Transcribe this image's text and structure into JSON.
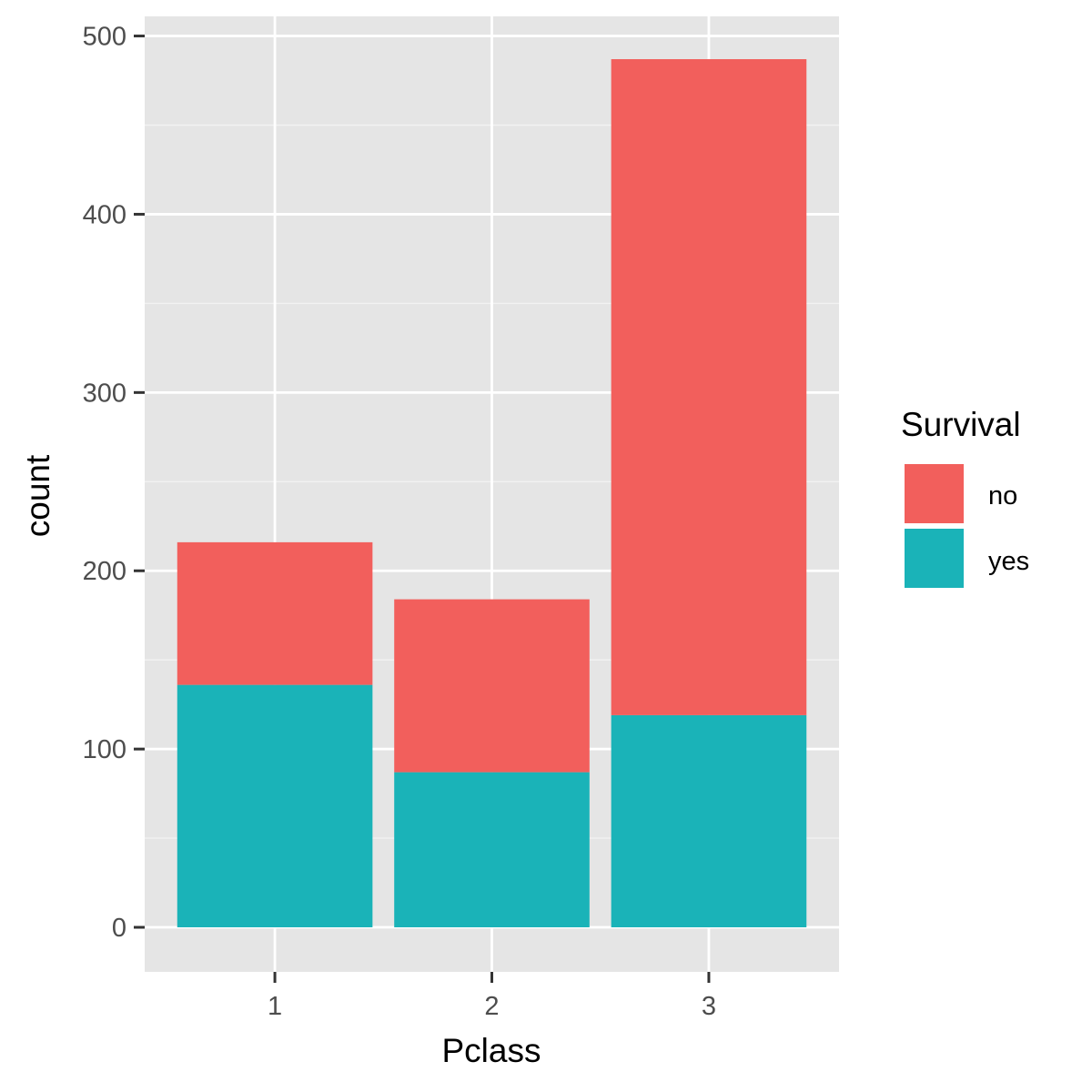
{
  "chart_data": {
    "type": "bar",
    "stacked": true,
    "categories": [
      "1",
      "2",
      "3"
    ],
    "series": [
      {
        "name": "no",
        "values": [
          80,
          97,
          368
        ],
        "color": "#F25F5C"
      },
      {
        "name": "yes",
        "values": [
          136,
          87,
          119
        ],
        "color": "#1AB3B8"
      }
    ],
    "xlabel": "Pclass",
    "ylabel": "count",
    "ylim": [
      -25,
      511
    ],
    "yticks": [
      0,
      100,
      200,
      300,
      400,
      500
    ],
    "legend": {
      "title": "Survival",
      "position": "right"
    },
    "grid": true,
    "panel_background": "#E5E5E5",
    "grid_color": "#FFFFFF"
  }
}
